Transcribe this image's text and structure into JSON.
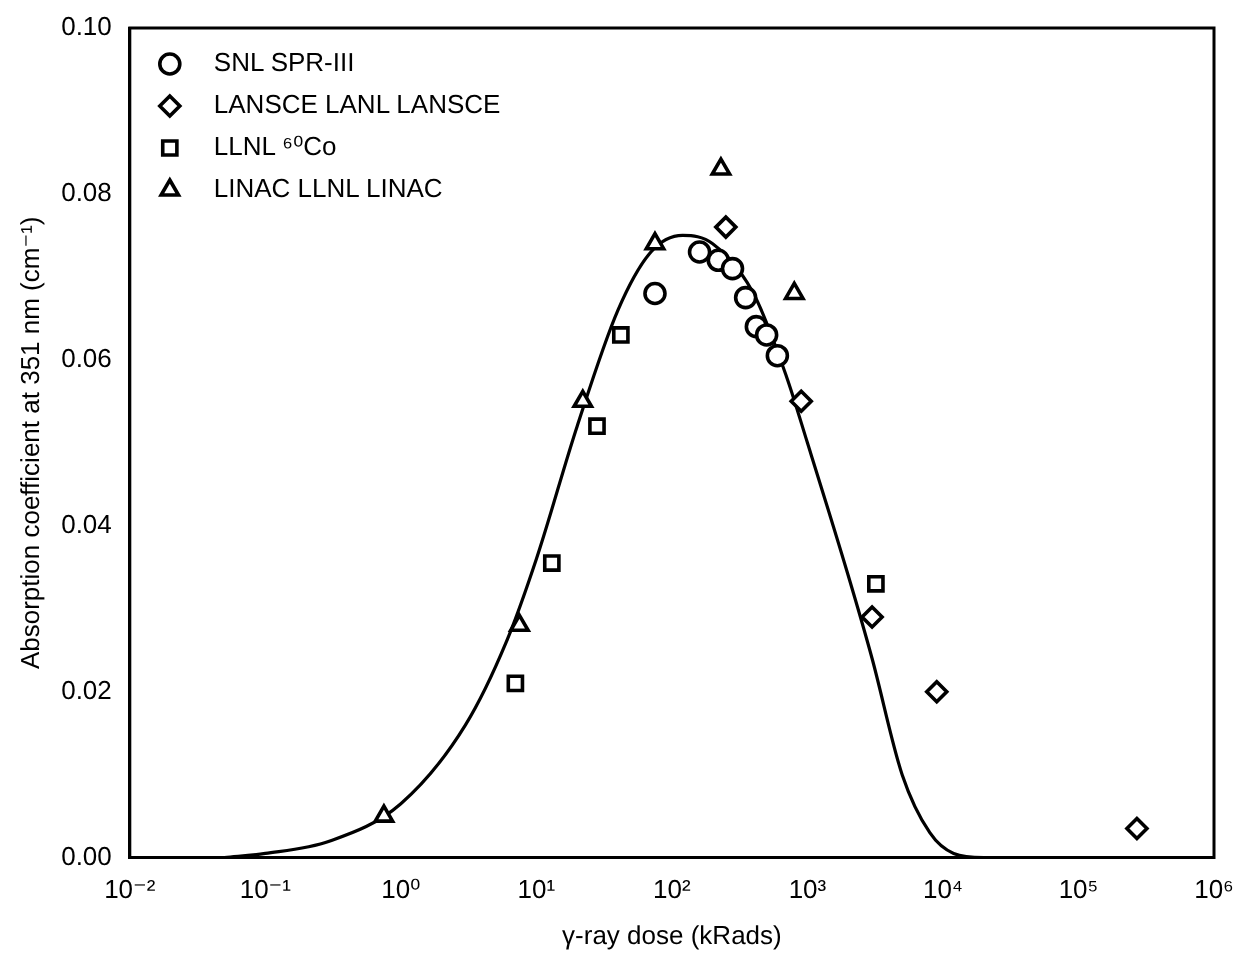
{
  "chart_data": {
    "type": "scatter",
    "xlabel": "γ-ray dose (kRads)",
    "ylabel": "Absorption coefficient at 351 nm (cm⁻¹)",
    "log": "x",
    "xlim": [
      0.01,
      1000000
    ],
    "ylim": [
      0,
      0.1
    ],
    "xticks": [
      {
        "value": 0.01,
        "label": "10⁻²"
      },
      {
        "value": 0.1,
        "label": "10⁻¹"
      },
      {
        "value": 1,
        "label": "10⁰"
      },
      {
        "value": 10,
        "label": "10¹"
      },
      {
        "value": 100,
        "label": "10²"
      },
      {
        "value": 1000,
        "label": "10³"
      },
      {
        "value": 10000,
        "label": "10⁴"
      },
      {
        "value": 100000,
        "label": "10⁵"
      },
      {
        "value": 1000000,
        "label": "10⁶"
      }
    ],
    "yticks": [
      {
        "value": 0,
        "label": "0.00"
      },
      {
        "value": 0.02,
        "label": "0.02"
      },
      {
        "value": 0.04,
        "label": "0.04"
      },
      {
        "value": 0.06,
        "label": "0.06"
      },
      {
        "value": 0.08,
        "label": "0.08"
      },
      {
        "value": 0.1,
        "label": "0.10"
      }
    ],
    "grid": false,
    "legend": "top left",
    "series": [
      {
        "name": "SNL SPR-III",
        "color": "#000000",
        "marker": "circle",
        "x": [
          75,
          160,
          220,
          280,
          350,
          420,
          500,
          600
        ],
        "values": [
          0.068,
          0.073,
          0.072,
          0.071,
          0.0675,
          0.064,
          0.063,
          0.0605
        ]
      },
      {
        "name": "LANSCE LANL LANSCE",
        "color": "#000000",
        "marker": "diamond",
        "x": [
          250,
          900,
          3000,
          9000,
          270000
        ],
        "values": [
          0.076,
          0.055,
          0.029,
          0.02,
          0.0035
        ]
      },
      {
        "name": "LLNL ⁶⁰Co",
        "color": "#000000",
        "marker": "square",
        "x": [
          7,
          13,
          28,
          42,
          3200
        ],
        "values": [
          0.021,
          0.0355,
          0.052,
          0.063,
          0.033
        ]
      },
      {
        "name": "LINAC LLNL LINAC",
        "color": "#000000",
        "marker": "triangle",
        "x": [
          0.75,
          7.5,
          22,
          75,
          230,
          800
        ],
        "values": [
          0.005,
          0.028,
          0.055,
          0.074,
          0.083,
          0.068
        ]
      },
      {
        "type": "line",
        "color": "#000000",
        "marker": "none",
        "line_style": "solid",
        "x": [
          0.05,
          0.1,
          0.3,
          1,
          3,
          6,
          10,
          20,
          40,
          70,
          120,
          200,
          400,
          700,
          1000,
          2000,
          3000,
          5000,
          8000,
          12000,
          20000,
          1000000
        ],
        "values": [
          0,
          0.0005,
          0.002,
          0.0065,
          0.016,
          0.026,
          0.036,
          0.052,
          0.066,
          0.073,
          0.075,
          0.074,
          0.068,
          0.058,
          0.05,
          0.034,
          0.024,
          0.01,
          0.003,
          0.0005,
          0,
          0
        ]
      }
    ]
  }
}
